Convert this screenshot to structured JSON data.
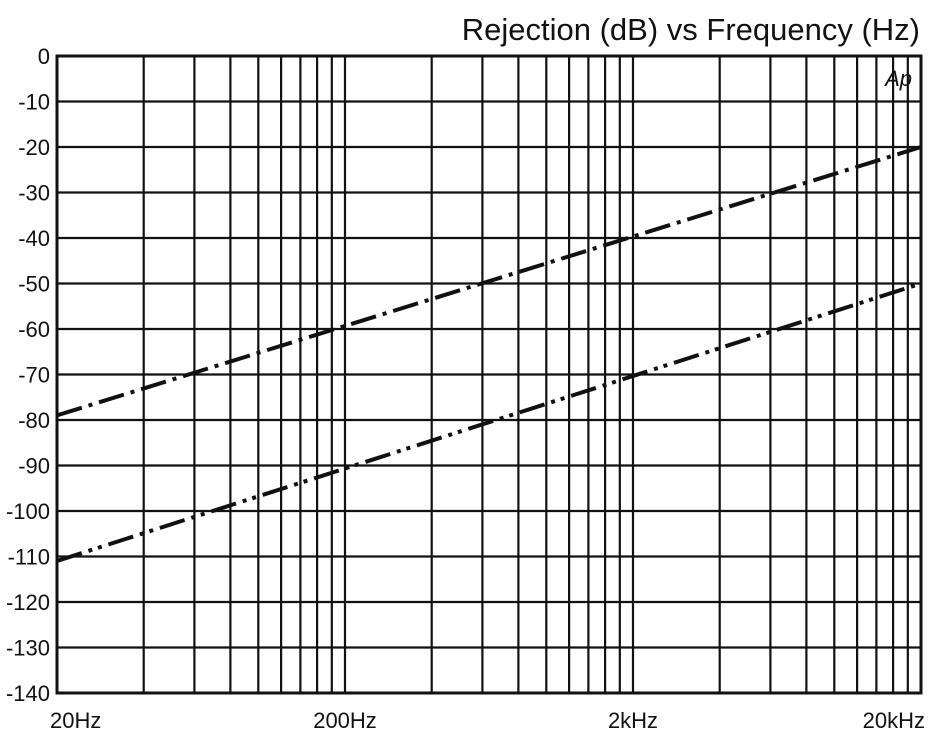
{
  "chart_data": {
    "type": "line",
    "title": "Rejection (dB)  vs  Frequency (Hz)",
    "xlabel": "",
    "ylabel": "",
    "xscale": "log",
    "xlim": [
      20,
      20000
    ],
    "ylim": [
      -140,
      0
    ],
    "grid": true,
    "legend": "none",
    "x_tick_labels": [
      "20Hz",
      "200Hz",
      "2kHz",
      "20kHz"
    ],
    "x_tick_values": [
      20,
      200,
      2000,
      20000
    ],
    "y_tick_labels": [
      "0",
      "-10",
      "-20",
      "-30",
      "-40",
      "-50",
      "-60",
      "-70",
      "-80",
      "-90",
      "-100",
      "-110",
      "-120",
      "-130",
      "-140"
    ],
    "y_tick_values": [
      0,
      -10,
      -20,
      -30,
      -40,
      -50,
      -60,
      -70,
      -80,
      -90,
      -100,
      -110,
      -120,
      -130,
      -140
    ],
    "series": [
      {
        "style": "dash-dot",
        "x": [
          20,
          20000
        ],
        "values": [
          -79,
          -20
        ]
      },
      {
        "style": "dash-dot-dot",
        "x": [
          20,
          20000
        ],
        "values": [
          -111,
          -50
        ]
      }
    ]
  },
  "logo_text": "Ap",
  "colors": {
    "line": "#111111",
    "background": "#ffffff"
  }
}
